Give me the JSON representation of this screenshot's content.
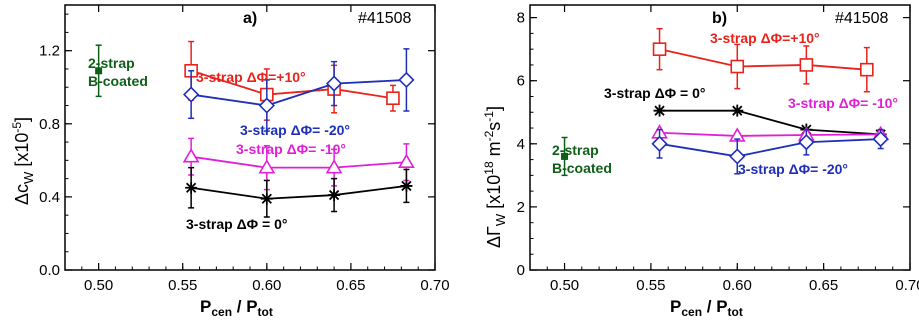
{
  "chart_data": [
    {
      "type": "scatter",
      "panel_label": "a)",
      "shot": "#41508",
      "xlabel": "P",
      "xlabel_sub1": "cen",
      "xlabel_mid": " / P",
      "xlabel_sub2": "tot",
      "ylabel": "Δc",
      "ylabel_sub": "W",
      "ylabel_unit": "[x10",
      "ylabel_exp": "-5",
      "ylabel_close": "]",
      "xlim": [
        0.48,
        0.7
      ],
      "ylim": [
        0.0,
        1.45
      ],
      "x_ticks": [
        "0.50",
        "0.55",
        "0.60",
        "0.65",
        "0.70"
      ],
      "x_tick_values": [
        0.5,
        0.55,
        0.6,
        0.65,
        0.7
      ],
      "y_ticks": [
        "0.0",
        "0.4",
        "0.8",
        "1.2"
      ],
      "y_tick_values": [
        0.0,
        0.4,
        0.8,
        1.2
      ],
      "series": [
        {
          "name": "3-strap ΔΦ=+10°",
          "color": "#e8231c",
          "marker": "square",
          "x": [
            0.555,
            0.6,
            0.64,
            0.675
          ],
          "y": [
            1.09,
            0.96,
            0.99,
            0.94
          ],
          "err": [
            0.16,
            0.14,
            0.13,
            0.07
          ]
        },
        {
          "name": "3-strap ΔΦ= -20°",
          "color": "#1f2fb8",
          "marker": "diamond",
          "x": [
            0.555,
            0.6,
            0.64,
            0.683
          ],
          "y": [
            0.96,
            0.9,
            1.02,
            1.04
          ],
          "err": [
            0.13,
            0.14,
            0.12,
            0.17
          ]
        },
        {
          "name": "3-strap ΔΦ= -10°",
          "color": "#e020d8",
          "marker": "triangle",
          "x": [
            0.555,
            0.6,
            0.64,
            0.683
          ],
          "y": [
            0.62,
            0.56,
            0.56,
            0.59
          ],
          "err": [
            0.1,
            0.12,
            0.1,
            0.1
          ]
        },
        {
          "name": "3-strap ΔΦ = 0°",
          "color": "#000000",
          "marker": "asterisk",
          "x": [
            0.555,
            0.6,
            0.64,
            0.683
          ],
          "y": [
            0.45,
            0.39,
            0.41,
            0.46
          ],
          "err": [
            0.11,
            0.1,
            0.09,
            0.09
          ]
        },
        {
          "name": "2-strap B-coated",
          "color": "#0f5f18",
          "marker": "square-filled",
          "x": [
            0.5
          ],
          "y": [
            1.09
          ],
          "err": [
            0.14
          ]
        }
      ]
    },
    {
      "type": "scatter",
      "panel_label": "b)",
      "shot": "#41508",
      "xlabel": "P",
      "xlabel_sub1": "cen",
      "xlabel_mid": " / P",
      "xlabel_sub2": "tot",
      "ylabel": "ΔΓ",
      "ylabel_sub": "W",
      "ylabel_unit": "[x10",
      "ylabel_exp": "18",
      "ylabel_mid": " m",
      "ylabel_exp2": "-2",
      "ylabel_mid2": "s",
      "ylabel_exp3": "-1",
      "ylabel_close": "]",
      "xlim": [
        0.48,
        0.7
      ],
      "ylim": [
        0,
        8.4
      ],
      "x_ticks": [
        "0.50",
        "0.55",
        "0.60",
        "0.65",
        "0.70"
      ],
      "x_tick_values": [
        0.5,
        0.55,
        0.6,
        0.65,
        0.7
      ],
      "y_ticks": [
        "0",
        "2",
        "4",
        "6",
        "8"
      ],
      "y_tick_values": [
        0,
        2,
        4,
        6,
        8
      ],
      "series": [
        {
          "name": "3-strap ΔΦ=+10°",
          "color": "#e8231c",
          "marker": "square",
          "x": [
            0.555,
            0.6,
            0.64,
            0.675
          ],
          "y": [
            7.0,
            6.45,
            6.5,
            6.35
          ],
          "err": [
            0.65,
            0.7,
            0.6,
            0.7
          ]
        },
        {
          "name": "3-strap ΔΦ = 0°",
          "color": "#000000",
          "marker": "asterisk",
          "x": [
            0.555,
            0.6,
            0.64,
            0.683
          ],
          "y": [
            5.05,
            5.05,
            4.45,
            4.3
          ],
          "err": [
            0,
            0,
            0,
            0
          ]
        },
        {
          "name": "3-strap ΔΦ= -10°",
          "color": "#e020d8",
          "marker": "triangle",
          "x": [
            0.555,
            0.6,
            0.64,
            0.683
          ],
          "y": [
            4.35,
            4.25,
            4.28,
            4.3
          ],
          "err": [
            0,
            0,
            0,
            0
          ]
        },
        {
          "name": "3-strap ΔΦ= -20°",
          "color": "#1f2fb8",
          "marker": "diamond",
          "x": [
            0.555,
            0.6,
            0.64,
            0.683
          ],
          "y": [
            4.0,
            3.6,
            4.05,
            4.15
          ],
          "err": [
            0.45,
            0.55,
            0.4,
            0.3
          ]
        },
        {
          "name": "2-strap B-coated",
          "color": "#0f5f18",
          "marker": "square-filled",
          "x": [
            0.5
          ],
          "y": [
            3.6
          ],
          "err": [
            0.6
          ]
        }
      ]
    }
  ]
}
